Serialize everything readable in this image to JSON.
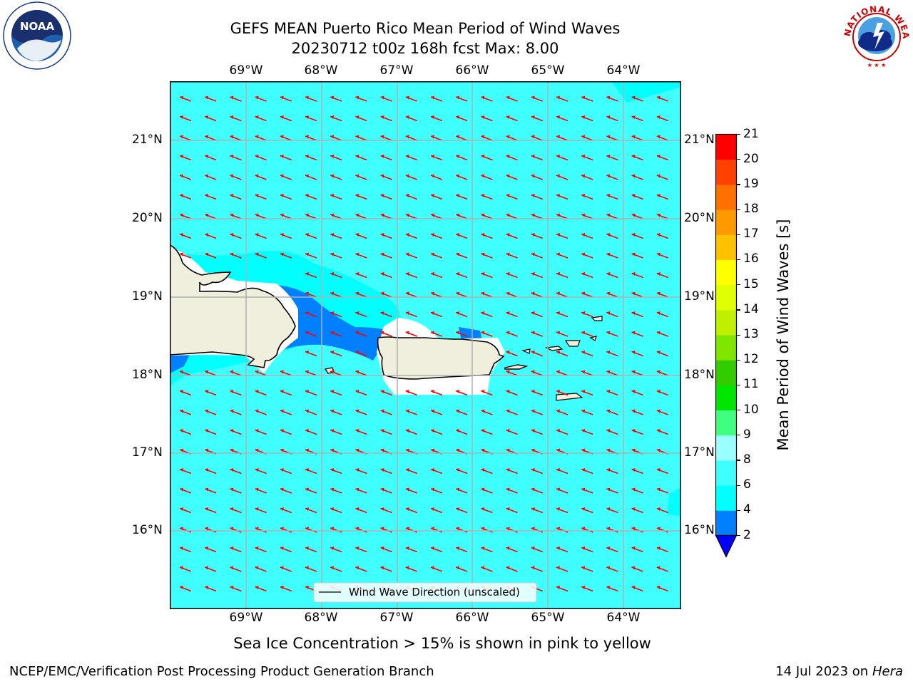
{
  "title": {
    "line1": "GEFS MEAN Puerto Rico Mean Period of Wind Waves",
    "line2": "20230712 t00z 168h fcst   Max: 8.00"
  },
  "lon_labels": [
    "69°W",
    "68°W",
    "67°W",
    "66°W",
    "65°W",
    "64°W"
  ],
  "lat_labels": [
    "21°N",
    "20°N",
    "19°N",
    "18°N",
    "17°N",
    "16°N"
  ],
  "legend": {
    "label": "Wind Wave Direction (unscaled)"
  },
  "colorbar": {
    "label": "Mean Period of Wind Waves [s]",
    "ticks": [
      "2",
      "4",
      "6",
      "8",
      "9",
      "10",
      "11",
      "12",
      "13",
      "14",
      "15",
      "16",
      "17",
      "18",
      "19",
      "20",
      "21"
    ],
    "colors": [
      "#0000ff",
      "#0080ff",
      "#00ffff",
      "#40ffff",
      "#99ffff",
      "#40ff80",
      "#00e600",
      "#33cc00",
      "#80e600",
      "#c0f000",
      "#e0ff00",
      "#ffff00",
      "#ffc000",
      "#ff9900",
      "#ff7000",
      "#ff4000",
      "#ff0000"
    ]
  },
  "caption": "Sea Ice Concentration > 15% is shown in pink to yellow",
  "footer": {
    "left": "NCEP/EMC/Verification Post Processing Product Generation Branch",
    "date": "14 Jul 2023 on ",
    "machine": "Hera"
  },
  "logos": {
    "noaa_text": "NOAA",
    "nws_text": "NATIONAL WEATHER SERVICE"
  },
  "colors": {
    "ocean": "#40ffff",
    "land": "#f0eedc",
    "arrow": "#ff0000"
  }
}
